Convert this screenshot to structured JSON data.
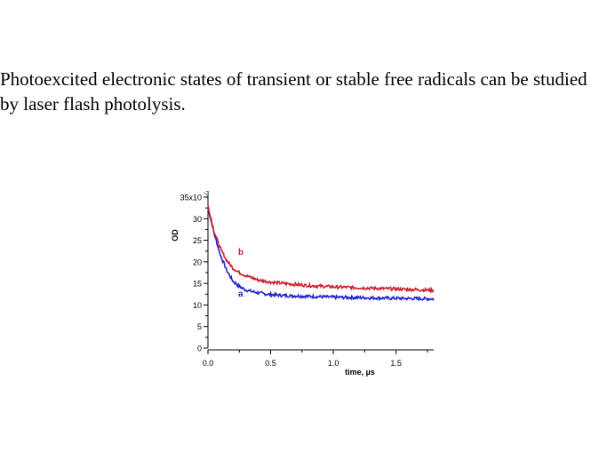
{
  "caption": "Photoexcited electronic states of transient or stable free radicals can be studied by laser flash photolysis.",
  "colors": {
    "series_a": "#2222cc",
    "series_b": "#cc2233",
    "axis": "#000000"
  },
  "chart_data": {
    "type": "line",
    "title": "",
    "xlabel": "time, µs",
    "ylabel": "OD",
    "y_multiplier_label": "x10",
    "y_multiplier_exp": "-3",
    "xlim": [
      0.0,
      1.8
    ],
    "ylim": [
      0,
      35
    ],
    "x_ticks": [
      0.0,
      0.5,
      1.0,
      1.5
    ],
    "x_tick_labels": [
      "0.0",
      "0.5",
      "1.0",
      "1.5"
    ],
    "y_ticks": [
      0,
      5,
      10,
      15,
      20,
      25,
      30,
      35
    ],
    "y_tick_labels": [
      "0",
      "5",
      "10",
      "15",
      "20",
      "25",
      "30",
      "35"
    ],
    "grid": false,
    "series": [
      {
        "name": "a",
        "x": [
          0.0,
          0.05,
          0.1,
          0.15,
          0.2,
          0.25,
          0.3,
          0.4,
          0.5,
          0.6,
          0.8,
          1.0,
          1.2,
          1.4,
          1.6,
          1.8
        ],
        "values": [
          32.5,
          26.5,
          21.5,
          18.0,
          15.5,
          14.3,
          13.5,
          12.8,
          12.4,
          12.2,
          12.0,
          11.8,
          11.7,
          11.6,
          11.5,
          11.4
        ]
      },
      {
        "name": "b",
        "x": [
          0.0,
          0.05,
          0.1,
          0.15,
          0.2,
          0.25,
          0.3,
          0.4,
          0.5,
          0.6,
          0.8,
          1.0,
          1.2,
          1.4,
          1.6,
          1.8
        ],
        "values": [
          33.0,
          27.0,
          23.0,
          20.3,
          18.5,
          17.5,
          16.8,
          15.8,
          15.3,
          15.0,
          14.5,
          14.2,
          14.0,
          13.8,
          13.6,
          13.4
        ]
      }
    ]
  }
}
